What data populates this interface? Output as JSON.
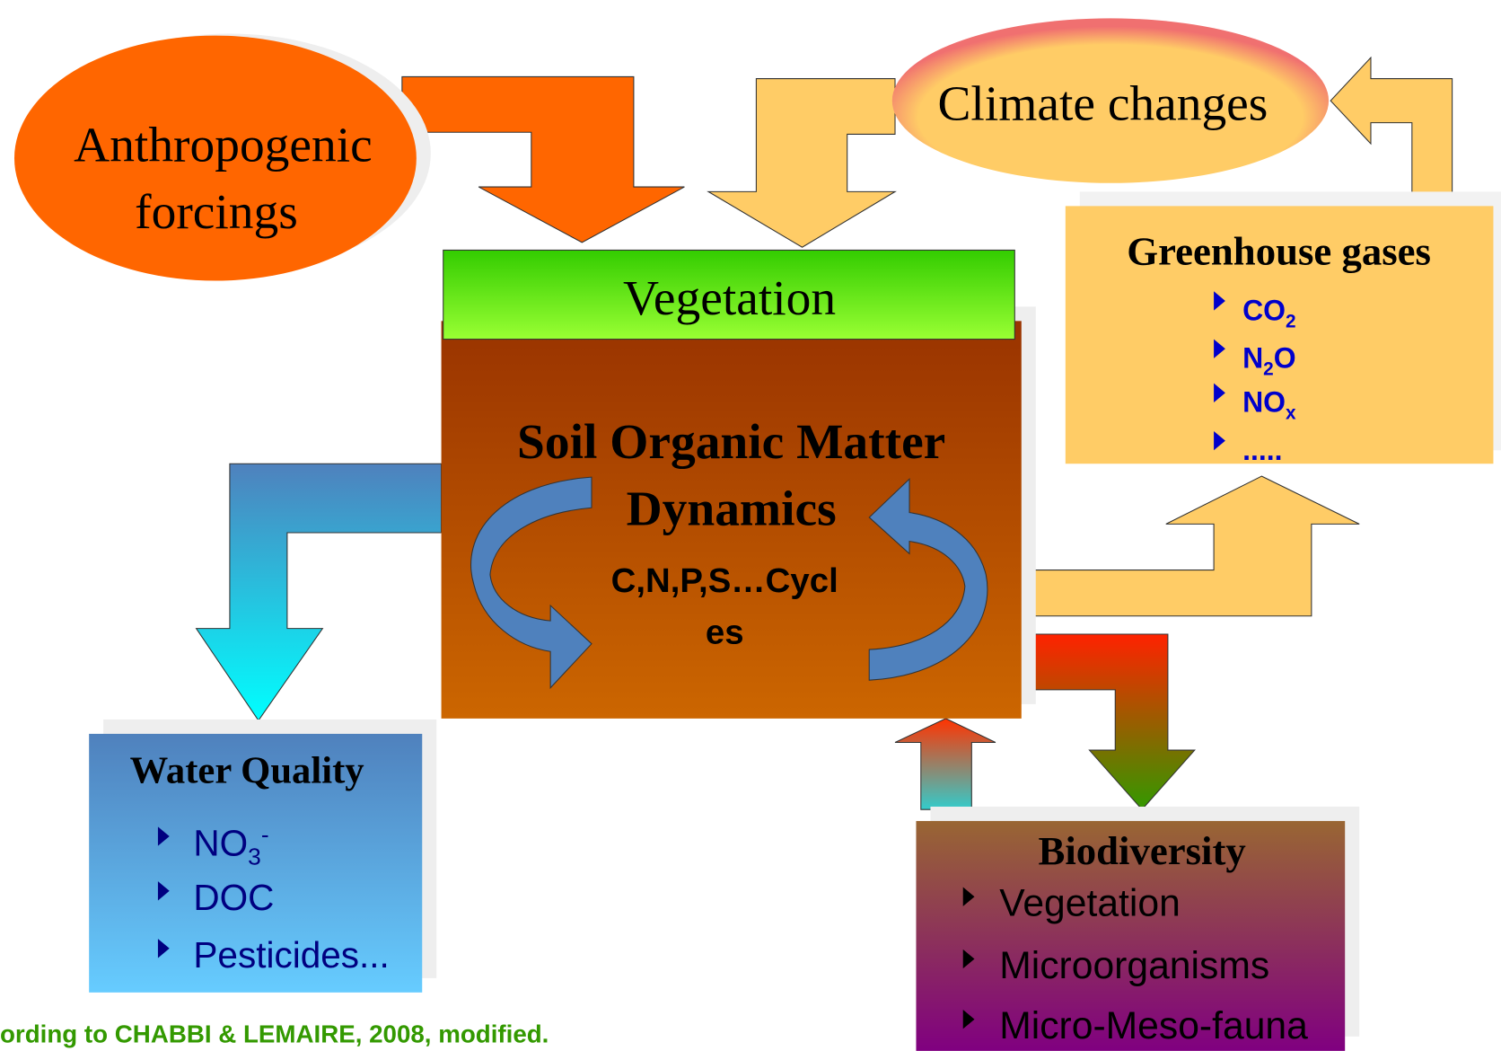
{
  "nodes": {
    "anthropogenic": {
      "lines": [
        "Anthropogenic",
        "forcings"
      ]
    },
    "climate": {
      "label": "Climate changes"
    },
    "vegetation": {
      "label": "Vegetation"
    },
    "som": {
      "lines": [
        "Soil Organic Matter",
        "Dynamics"
      ],
      "cycles": [
        "C,N,P,S…Cycl",
        "es"
      ]
    },
    "greenhouse": {
      "title": "Greenhouse gases",
      "items": [
        [
          {
            "text": "CO"
          },
          {
            "text": "2",
            "script": "sub"
          }
        ],
        [
          {
            "text": "N"
          },
          {
            "text": "2",
            "script": "sub"
          },
          {
            "text": "O"
          }
        ],
        [
          {
            "text": "NO"
          },
          {
            "text": "x",
            "script": "sub"
          }
        ],
        [
          {
            "text": "....."
          }
        ]
      ]
    },
    "water": {
      "title": "Water Quality",
      "items": [
        [
          {
            "text": "NO"
          },
          {
            "text": "3",
            "script": "sub"
          },
          {
            "text": "-",
            "script": "sup"
          }
        ],
        [
          {
            "text": "DOC"
          }
        ],
        [
          {
            "text": "Pesticides..."
          }
        ]
      ]
    },
    "biodiversity": {
      "title": "Biodiversity",
      "items": [
        [
          {
            "text": "Vegetation"
          }
        ],
        [
          {
            "text": "Microorganisms"
          }
        ],
        [
          {
            "text": "Micro-Meso-fauna"
          }
        ]
      ]
    }
  },
  "citation": "ording to CHABBI & LEMAIRE, 2008, modified."
}
